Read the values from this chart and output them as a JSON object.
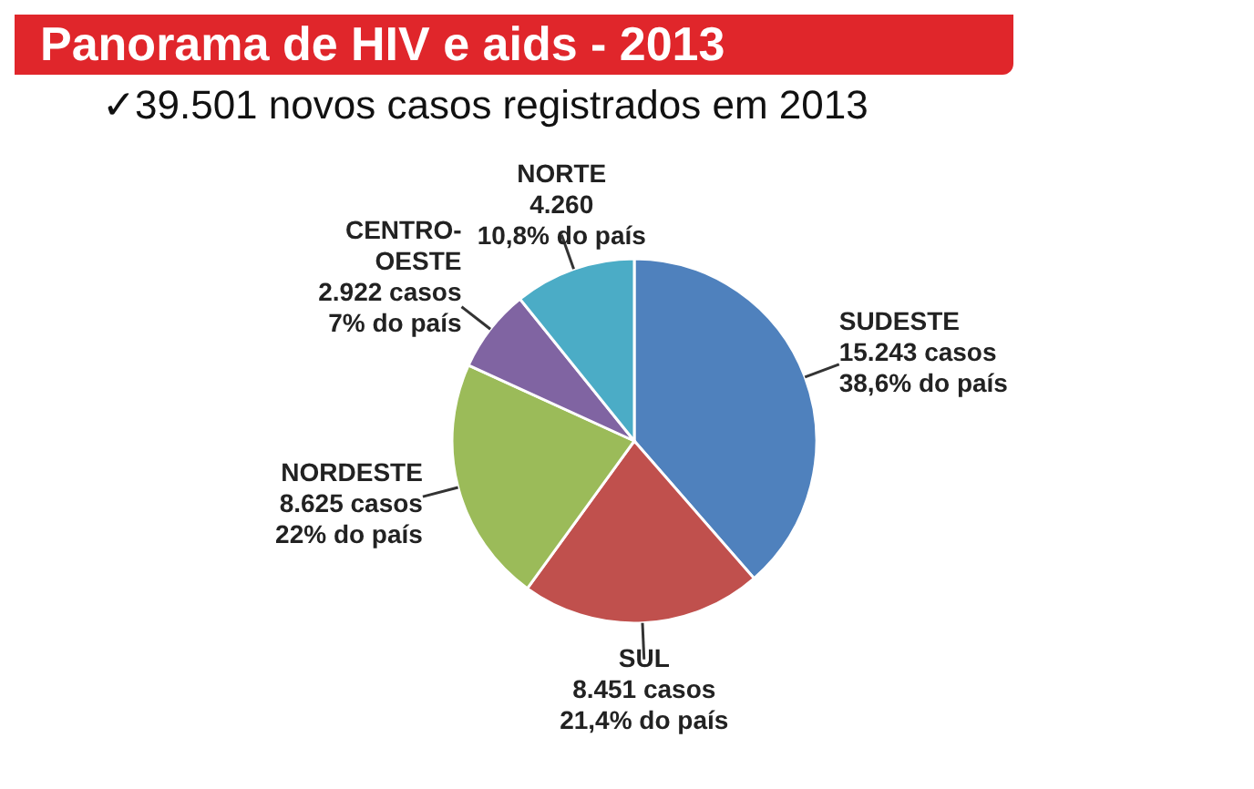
{
  "chart_data": {
    "type": "pie",
    "title": "Panorama de HIV e aids - 2013",
    "subtitle": "✓39.501 novos casos registrados em 2013",
    "categories": [
      "SUDESTE",
      "SUL",
      "NORDESTE",
      "CENTRO-OESTE",
      "NORTE"
    ],
    "values": [
      15243,
      8451,
      8625,
      2922,
      4260
    ],
    "colors": [
      "#4f81bd",
      "#c0504d",
      "#9bbb59",
      "#8064a2",
      "#4bacc6"
    ],
    "value_labels": [
      "15.243 casos\n38,6% do país",
      "8.451 casos\n21,4% do país",
      "8.625 casos\n22% do país",
      "2.922 casos\n7% do país",
      "4.260\n10,8% do país"
    ]
  }
}
